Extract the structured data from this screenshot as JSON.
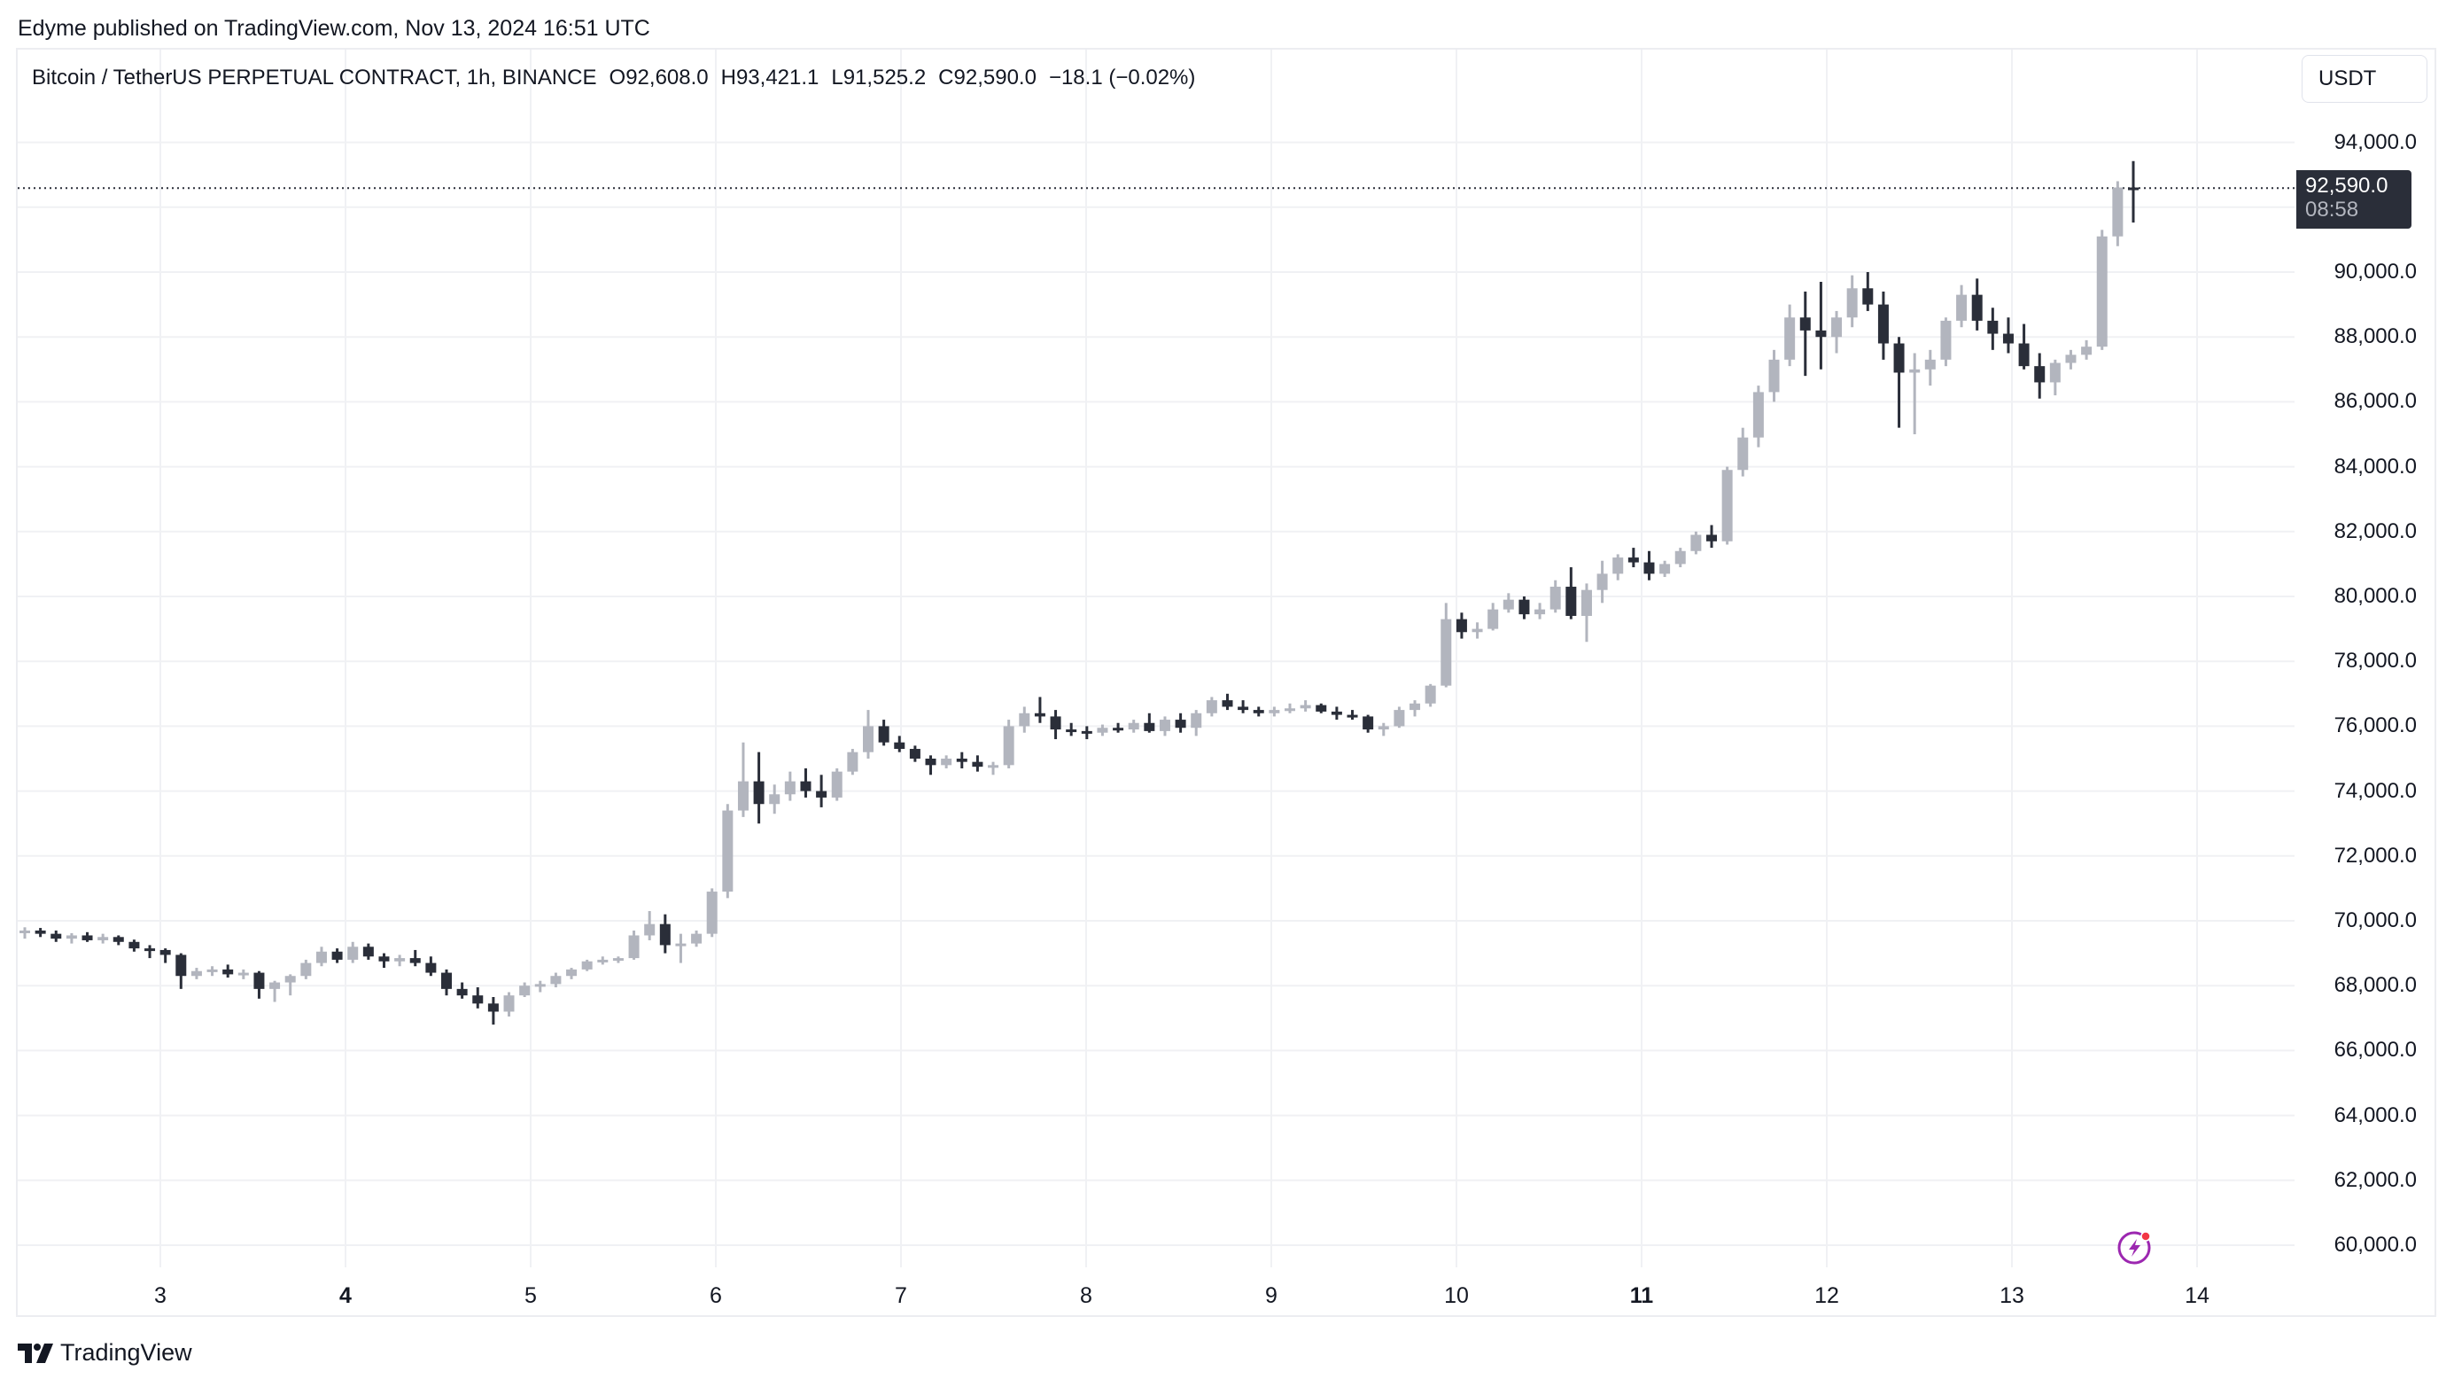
{
  "publish_line": "Edyme published on TradingView.com, Nov 13, 2024 16:51 UTC",
  "legend": {
    "symbol": "Bitcoin / TetherUS PERPETUAL CONTRACT, 1h, BINANCE",
    "open": "O92,608.0",
    "high": "H93,421.1",
    "low": "L91,525.2",
    "close": "C92,590.0",
    "change": "−18.1 (−0.02%)"
  },
  "price_scale": {
    "currency_button": "USDT",
    "last_price": "92,590.0",
    "countdown": "08:58",
    "ticks": [
      "94,000.0",
      "90,000.0",
      "88,000.0",
      "86,000.0",
      "84,000.0",
      "82,000.0",
      "80,000.0",
      "78,000.0",
      "76,000.0",
      "74,000.0",
      "72,000.0",
      "70,000.0",
      "68,000.0",
      "66,000.0",
      "64,000.0",
      "62,000.0",
      "60,000.0"
    ]
  },
  "time_scale": {
    "ticks": [
      {
        "label": "3",
        "bold": false
      },
      {
        "label": "4",
        "bold": true
      },
      {
        "label": "5",
        "bold": false
      },
      {
        "label": "6",
        "bold": false
      },
      {
        "label": "7",
        "bold": false
      },
      {
        "label": "8",
        "bold": false
      },
      {
        "label": "9",
        "bold": false
      },
      {
        "label": "10",
        "bold": false
      },
      {
        "label": "11",
        "bold": true
      },
      {
        "label": "12",
        "bold": false
      },
      {
        "label": "13",
        "bold": false
      },
      {
        "label": "14",
        "bold": false
      }
    ]
  },
  "branding": {
    "logo_text": "TradingView"
  },
  "colors": {
    "up": "#b2b5be",
    "down": "#2a2e39",
    "grid": "#f0f1f4",
    "accent_bolt": "#9c27b0",
    "dot": "#f23645"
  },
  "chart_data": {
    "type": "candlestick",
    "title": "Bitcoin / TetherUS PERPETUAL CONTRACT, 1h, BINANCE",
    "xlabel": "",
    "ylabel": "USDT",
    "ylim": [
      59000,
      95500
    ],
    "x_ticks": [
      "3",
      "4",
      "5",
      "6",
      "7",
      "8",
      "9",
      "10",
      "11",
      "12",
      "13",
      "14"
    ],
    "y_ticks": [
      60000,
      62000,
      64000,
      66000,
      68000,
      70000,
      72000,
      74000,
      76000,
      78000,
      80000,
      82000,
      84000,
      86000,
      88000,
      90000,
      94000
    ],
    "last_price": 92590.0,
    "note": "candles approximated at ~2h resolution, [open, high, low, close]",
    "candles": [
      [
        69650,
        69800,
        69450,
        69700
      ],
      [
        69700,
        69780,
        69500,
        69600
      ],
      [
        69600,
        69700,
        69350,
        69450
      ],
      [
        69450,
        69620,
        69300,
        69550
      ],
      [
        69550,
        69650,
        69350,
        69400
      ],
      [
        69400,
        69600,
        69300,
        69500
      ],
      [
        69500,
        69550,
        69250,
        69350
      ],
      [
        69350,
        69420,
        69050,
        69150
      ],
      [
        69150,
        69250,
        68850,
        69100
      ],
      [
        69100,
        69150,
        68700,
        68950
      ],
      [
        68950,
        69000,
        67900,
        68300
      ],
      [
        68300,
        68550,
        68200,
        68450
      ],
      [
        68450,
        68600,
        68300,
        68500
      ],
      [
        68500,
        68650,
        68250,
        68350
      ],
      [
        68350,
        68500,
        68200,
        68400
      ],
      [
        68400,
        68450,
        67600,
        67900
      ],
      [
        67900,
        68150,
        67500,
        68100
      ],
      [
        68100,
        68350,
        67700,
        68300
      ],
      [
        68300,
        68800,
        68200,
        68700
      ],
      [
        68700,
        69200,
        68600,
        69050
      ],
      [
        69050,
        69150,
        68700,
        68800
      ],
      [
        68800,
        69350,
        68700,
        69200
      ],
      [
        69200,
        69300,
        68800,
        68900
      ],
      [
        68900,
        69000,
        68550,
        68750
      ],
      [
        68750,
        68950,
        68600,
        68850
      ],
      [
        68850,
        69100,
        68600,
        68700
      ],
      [
        68700,
        68900,
        68300,
        68400
      ],
      [
        68400,
        68500,
        67700,
        67900
      ],
      [
        67900,
        68100,
        67600,
        67700
      ],
      [
        67700,
        67950,
        67300,
        67450
      ],
      [
        67450,
        67650,
        66800,
        67200
      ],
      [
        67200,
        67800,
        67050,
        67700
      ],
      [
        67700,
        68100,
        67650,
        68000
      ],
      [
        68000,
        68150,
        67800,
        68050
      ],
      [
        68050,
        68400,
        67950,
        68300
      ],
      [
        68300,
        68550,
        68200,
        68500
      ],
      [
        68500,
        68800,
        68450,
        68750
      ],
      [
        68750,
        68900,
        68650,
        68800
      ],
      [
        68800,
        68900,
        68700,
        68850
      ],
      [
        68850,
        69700,
        68800,
        69550
      ],
      [
        69550,
        70300,
        69400,
        69900
      ],
      [
        69900,
        70200,
        69000,
        69250
      ],
      [
        69250,
        69600,
        68700,
        69300
      ],
      [
        69300,
        69700,
        69200,
        69600
      ],
      [
        69600,
        71000,
        69500,
        70900
      ],
      [
        70900,
        73600,
        70700,
        73400
      ],
      [
        73400,
        75500,
        73200,
        74300
      ],
      [
        74300,
        75200,
        73000,
        73600
      ],
      [
        73600,
        74200,
        73300,
        73900
      ],
      [
        73900,
        74600,
        73700,
        74300
      ],
      [
        74300,
        74700,
        73800,
        74000
      ],
      [
        74000,
        74500,
        73500,
        73800
      ],
      [
        73800,
        74700,
        73700,
        74600
      ],
      [
        74600,
        75300,
        74500,
        75200
      ],
      [
        75200,
        76500,
        75000,
        76000
      ],
      [
        76000,
        76200,
        75400,
        75500
      ],
      [
        75500,
        75700,
        75200,
        75300
      ],
      [
        75300,
        75400,
        74900,
        75000
      ],
      [
        75000,
        75100,
        74500,
        74800
      ],
      [
        74800,
        75100,
        74700,
        75000
      ],
      [
        75000,
        75200,
        74700,
        74900
      ],
      [
        74900,
        75100,
        74600,
        74750
      ],
      [
        74750,
        74900,
        74500,
        74800
      ],
      [
        74800,
        76200,
        74700,
        76000
      ],
      [
        76000,
        76600,
        75800,
        76400
      ],
      [
        76400,
        76900,
        76100,
        76300
      ],
      [
        76300,
        76500,
        75600,
        75900
      ],
      [
        75900,
        76100,
        75700,
        75850
      ],
      [
        75850,
        76000,
        75600,
        75800
      ],
      [
        75800,
        76050,
        75700,
        75950
      ],
      [
        75950,
        76100,
        75800,
        75900
      ],
      [
        75900,
        76200,
        75800,
        76100
      ],
      [
        76100,
        76400,
        75800,
        75850
      ],
      [
        75850,
        76300,
        75700,
        76200
      ],
      [
        76200,
        76400,
        75800,
        75950
      ],
      [
        75950,
        76500,
        75700,
        76400
      ],
      [
        76400,
        76900,
        76300,
        76800
      ],
      [
        76800,
        77000,
        76500,
        76600
      ],
      [
        76600,
        76800,
        76400,
        76500
      ],
      [
        76500,
        76600,
        76300,
        76400
      ],
      [
        76400,
        76600,
        76300,
        76500
      ],
      [
        76500,
        76700,
        76400,
        76550
      ],
      [
        76550,
        76800,
        76450,
        76650
      ],
      [
        76650,
        76700,
        76400,
        76450
      ],
      [
        76450,
        76600,
        76200,
        76350
      ],
      [
        76350,
        76500,
        76200,
        76300
      ],
      [
        76300,
        76350,
        75800,
        75900
      ],
      [
        75900,
        76100,
        75700,
        76000
      ],
      [
        76000,
        76600,
        75950,
        76500
      ],
      [
        76500,
        76800,
        76300,
        76700
      ],
      [
        76700,
        77300,
        76600,
        77250
      ],
      [
        77250,
        79800,
        77200,
        79300
      ],
      [
        79300,
        79500,
        78700,
        78900
      ],
      [
        78900,
        79200,
        78700,
        79000
      ],
      [
        79000,
        79800,
        78950,
        79600
      ],
      [
        79600,
        80100,
        79500,
        79900
      ],
      [
        79900,
        80000,
        79300,
        79450
      ],
      [
        79450,
        79800,
        79300,
        79600
      ],
      [
        79600,
        80500,
        79500,
        80300
      ],
      [
        80300,
        80900,
        79300,
        79400
      ],
      [
        79400,
        80400,
        78600,
        80200
      ],
      [
        80200,
        81100,
        79800,
        80700
      ],
      [
        80700,
        81300,
        80500,
        81200
      ],
      [
        81200,
        81500,
        80900,
        81050
      ],
      [
        81050,
        81400,
        80500,
        80700
      ],
      [
        80700,
        81100,
        80600,
        81000
      ],
      [
        81000,
        81500,
        80900,
        81400
      ],
      [
        81400,
        82000,
        81300,
        81900
      ],
      [
        81900,
        82200,
        81500,
        81700
      ],
      [
        81700,
        84000,
        81600,
        83900
      ],
      [
        83900,
        85200,
        83700,
        84900
      ],
      [
        84900,
        86500,
        84600,
        86300
      ],
      [
        86300,
        87600,
        86000,
        87300
      ],
      [
        87300,
        89000,
        87100,
        88600
      ],
      [
        88600,
        89400,
        86800,
        88200
      ],
      [
        88200,
        89700,
        87000,
        88000
      ],
      [
        88000,
        88800,
        87500,
        88600
      ],
      [
        88600,
        89900,
        88300,
        89500
      ],
      [
        89500,
        90000,
        88800,
        89000
      ],
      [
        89000,
        89400,
        87300,
        87800
      ],
      [
        87800,
        88000,
        85200,
        86900
      ],
      [
        86900,
        87500,
        85000,
        87000
      ],
      [
        87000,
        87600,
        86500,
        87300
      ],
      [
        87300,
        88600,
        87100,
        88500
      ],
      [
        88500,
        89600,
        88300,
        89300
      ],
      [
        89300,
        89800,
        88200,
        88500
      ],
      [
        88500,
        88900,
        87600,
        88100
      ],
      [
        88100,
        88600,
        87500,
        87800
      ],
      [
        87800,
        88400,
        87000,
        87100
      ],
      [
        87100,
        87500,
        86100,
        86600
      ],
      [
        86600,
        87300,
        86200,
        87200
      ],
      [
        87200,
        87600,
        87000,
        87450
      ],
      [
        87450,
        87900,
        87300,
        87700
      ],
      [
        87700,
        91300,
        87600,
        91100
      ],
      [
        91100,
        92800,
        90800,
        92608
      ],
      [
        92608,
        93421,
        91525,
        92590
      ]
    ]
  }
}
